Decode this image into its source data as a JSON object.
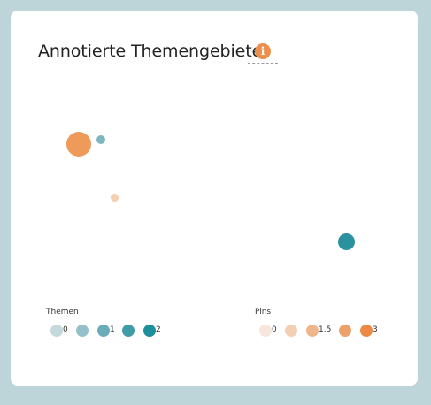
{
  "widget": {
    "title": "Annotierte Themengebiete",
    "info_icon": "info-icon",
    "info_glyph": "i"
  },
  "legend_themen": {
    "title": "Themen",
    "items": [
      {
        "label": "0",
        "color": "#c4d9dc"
      },
      {
        "label": "",
        "color": "#94c1c9"
      },
      {
        "label": "1",
        "color": "#6aadb8"
      },
      {
        "label": "",
        "color": "#3e9ca8"
      },
      {
        "label": "2",
        "color": "#1d8f9c"
      }
    ]
  },
  "legend_pins": {
    "title": "Pins",
    "items": [
      {
        "label": "0",
        "color": "#f7e6dc"
      },
      {
        "label": "",
        "color": "#f3cfb4"
      },
      {
        "label": "1.5",
        "color": "#efb68d"
      },
      {
        "label": "",
        "color": "#eda16a"
      },
      {
        "label": "3",
        "color": "#ec8a45"
      }
    ]
  },
  "bubbles": [
    {
      "color": "#ee9a5a"
    },
    {
      "color": "#7fb5bf"
    },
    {
      "color": "#f5cfb2"
    },
    {
      "color": "#2a929f"
    }
  ]
}
